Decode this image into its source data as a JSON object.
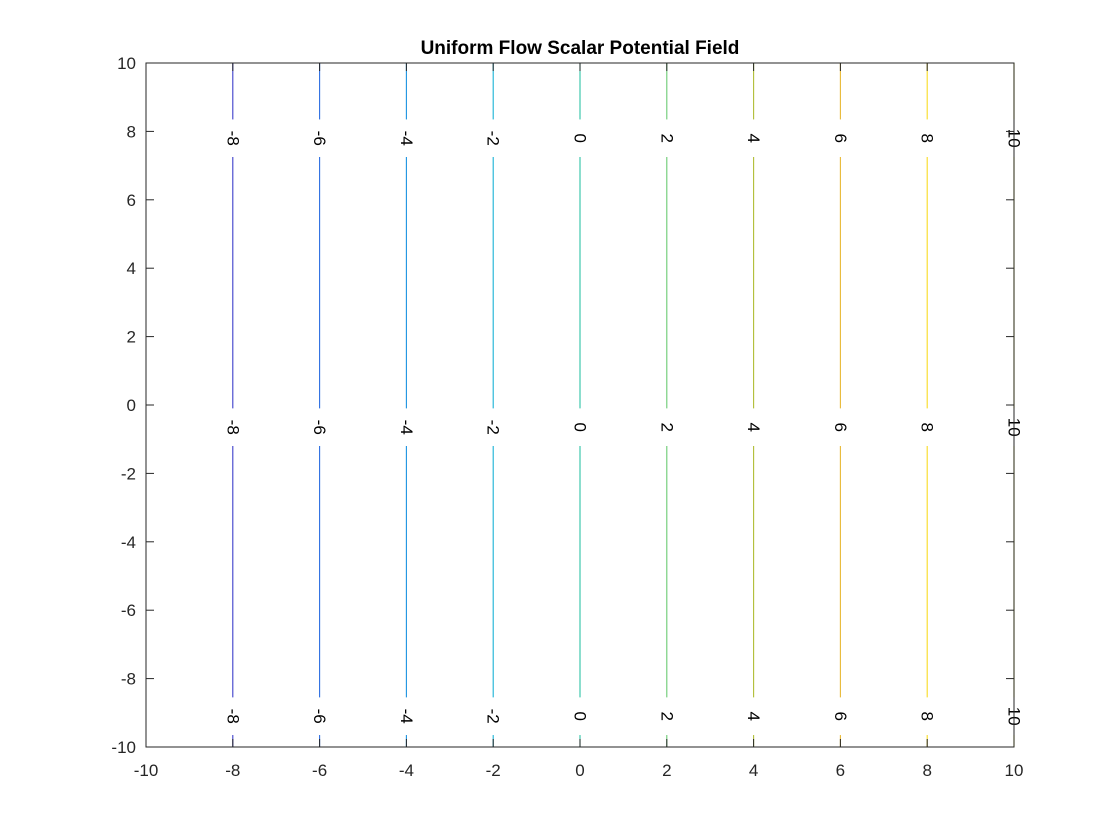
{
  "chart_data": {
    "type": "contour",
    "title": "Uniform Flow Scalar Potential Field",
    "xlabel": "",
    "ylabel": "",
    "xlim": [
      -10,
      10
    ],
    "ylim": [
      -10,
      10
    ],
    "xticks": [
      -10,
      -8,
      -6,
      -4,
      -2,
      0,
      2,
      4,
      6,
      8,
      10
    ],
    "yticks": [
      -10,
      -8,
      -6,
      -4,
      -2,
      0,
      2,
      4,
      6,
      8,
      10
    ],
    "xtick_labels": [
      "-10",
      "-8",
      "-6",
      "-4",
      "-2",
      "0",
      "2",
      "4",
      "6",
      "8",
      "10"
    ],
    "ytick_labels": [
      "-10",
      "-8",
      "-6",
      "-4",
      "-2",
      "0",
      "2",
      "4",
      "6",
      "8",
      "10"
    ],
    "grid": false,
    "box": true,
    "field": "phi = x",
    "contour_levels": [
      {
        "level": -8,
        "label": "-8",
        "color": "#3d3ecb"
      },
      {
        "level": -6,
        "label": "-6",
        "color": "#2b6de0"
      },
      {
        "level": -4,
        "label": "-4",
        "color": "#1a92e0"
      },
      {
        "level": -2,
        "label": "-2",
        "color": "#18b2d6"
      },
      {
        "level": 0,
        "label": "0",
        "color": "#2fc4a6"
      },
      {
        "level": 2,
        "label": "2",
        "color": "#6acb72"
      },
      {
        "level": 4,
        "label": "4",
        "color": "#b0bd35"
      },
      {
        "level": 6,
        "label": "6",
        "color": "#e8b935"
      },
      {
        "level": 8,
        "label": "8",
        "color": "#f9dc22"
      },
      {
        "level": 10,
        "label": "10",
        "color": "#f9fb0e"
      }
    ],
    "label_y_positions": [
      7.8,
      -0.65,
      -9.1
    ]
  }
}
